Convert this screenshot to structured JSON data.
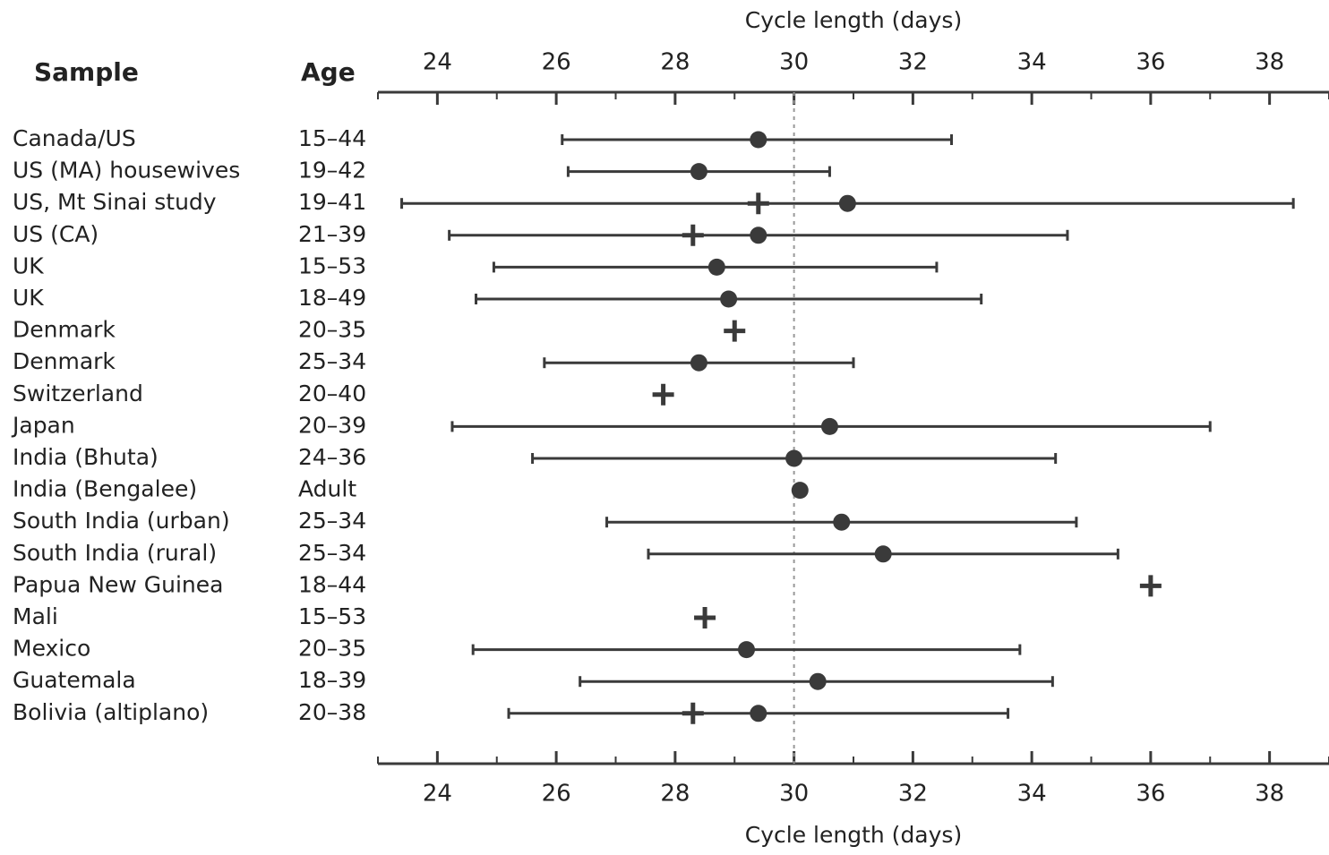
{
  "chart_data": {
    "type": "forest",
    "xlabel": "Cycle length (days)",
    "sample_header": "Sample",
    "age_header": "Age",
    "categories": [
      "Canada/US",
      "US (MA) housewives",
      "US, Mt Sinai study",
      "US (CA)",
      "UK",
      "UK",
      "Denmark",
      "Denmark",
      "Switzerland",
      "Japan",
      "India (Bhuta)",
      "India (Bengalee)",
      "South India (urban)",
      "South India (rural)",
      "Papua New Guinea",
      "Mali",
      "Mexico",
      "Guatemala",
      "Bolivia (altiplano)"
    ],
    "ages": [
      "15–44",
      "19–42",
      "19–41",
      "21–39",
      "15–53",
      "18–49",
      "20–35",
      "25–34",
      "20–40",
      "20–39",
      "24–36",
      "Adult",
      "25–34",
      "25–34",
      "18–44",
      "15–53",
      "20–35",
      "18–39",
      "20–38"
    ],
    "mean": [
      29.4,
      28.4,
      30.9,
      29.4,
      28.7,
      28.9,
      null,
      28.4,
      null,
      30.6,
      30.0,
      30.1,
      30.8,
      31.5,
      null,
      null,
      29.2,
      30.4,
      29.4
    ],
    "median": [
      null,
      null,
      29.4,
      28.3,
      null,
      null,
      29.0,
      null,
      27.8,
      null,
      null,
      null,
      null,
      null,
      36.0,
      28.5,
      null,
      null,
      28.3
    ],
    "low": [
      26.1,
      26.2,
      23.4,
      24.2,
      24.95,
      24.65,
      null,
      25.8,
      null,
      24.25,
      25.6,
      null,
      26.85,
      27.55,
      null,
      null,
      24.6,
      26.4,
      25.2
    ],
    "high": [
      32.65,
      30.6,
      38.4,
      34.6,
      32.4,
      33.15,
      null,
      31.0,
      null,
      37.0,
      34.4,
      null,
      34.75,
      35.45,
      null,
      null,
      33.8,
      34.35,
      33.6
    ],
    "color": "#3a3a3a",
    "reference_line": 30,
    "xlim": [
      23,
      39
    ],
    "xticks": [
      24,
      26,
      28,
      30,
      32,
      34,
      36,
      38
    ],
    "minor_xticks": [
      23,
      25,
      27,
      29,
      31,
      33,
      35,
      37,
      39
    ]
  }
}
